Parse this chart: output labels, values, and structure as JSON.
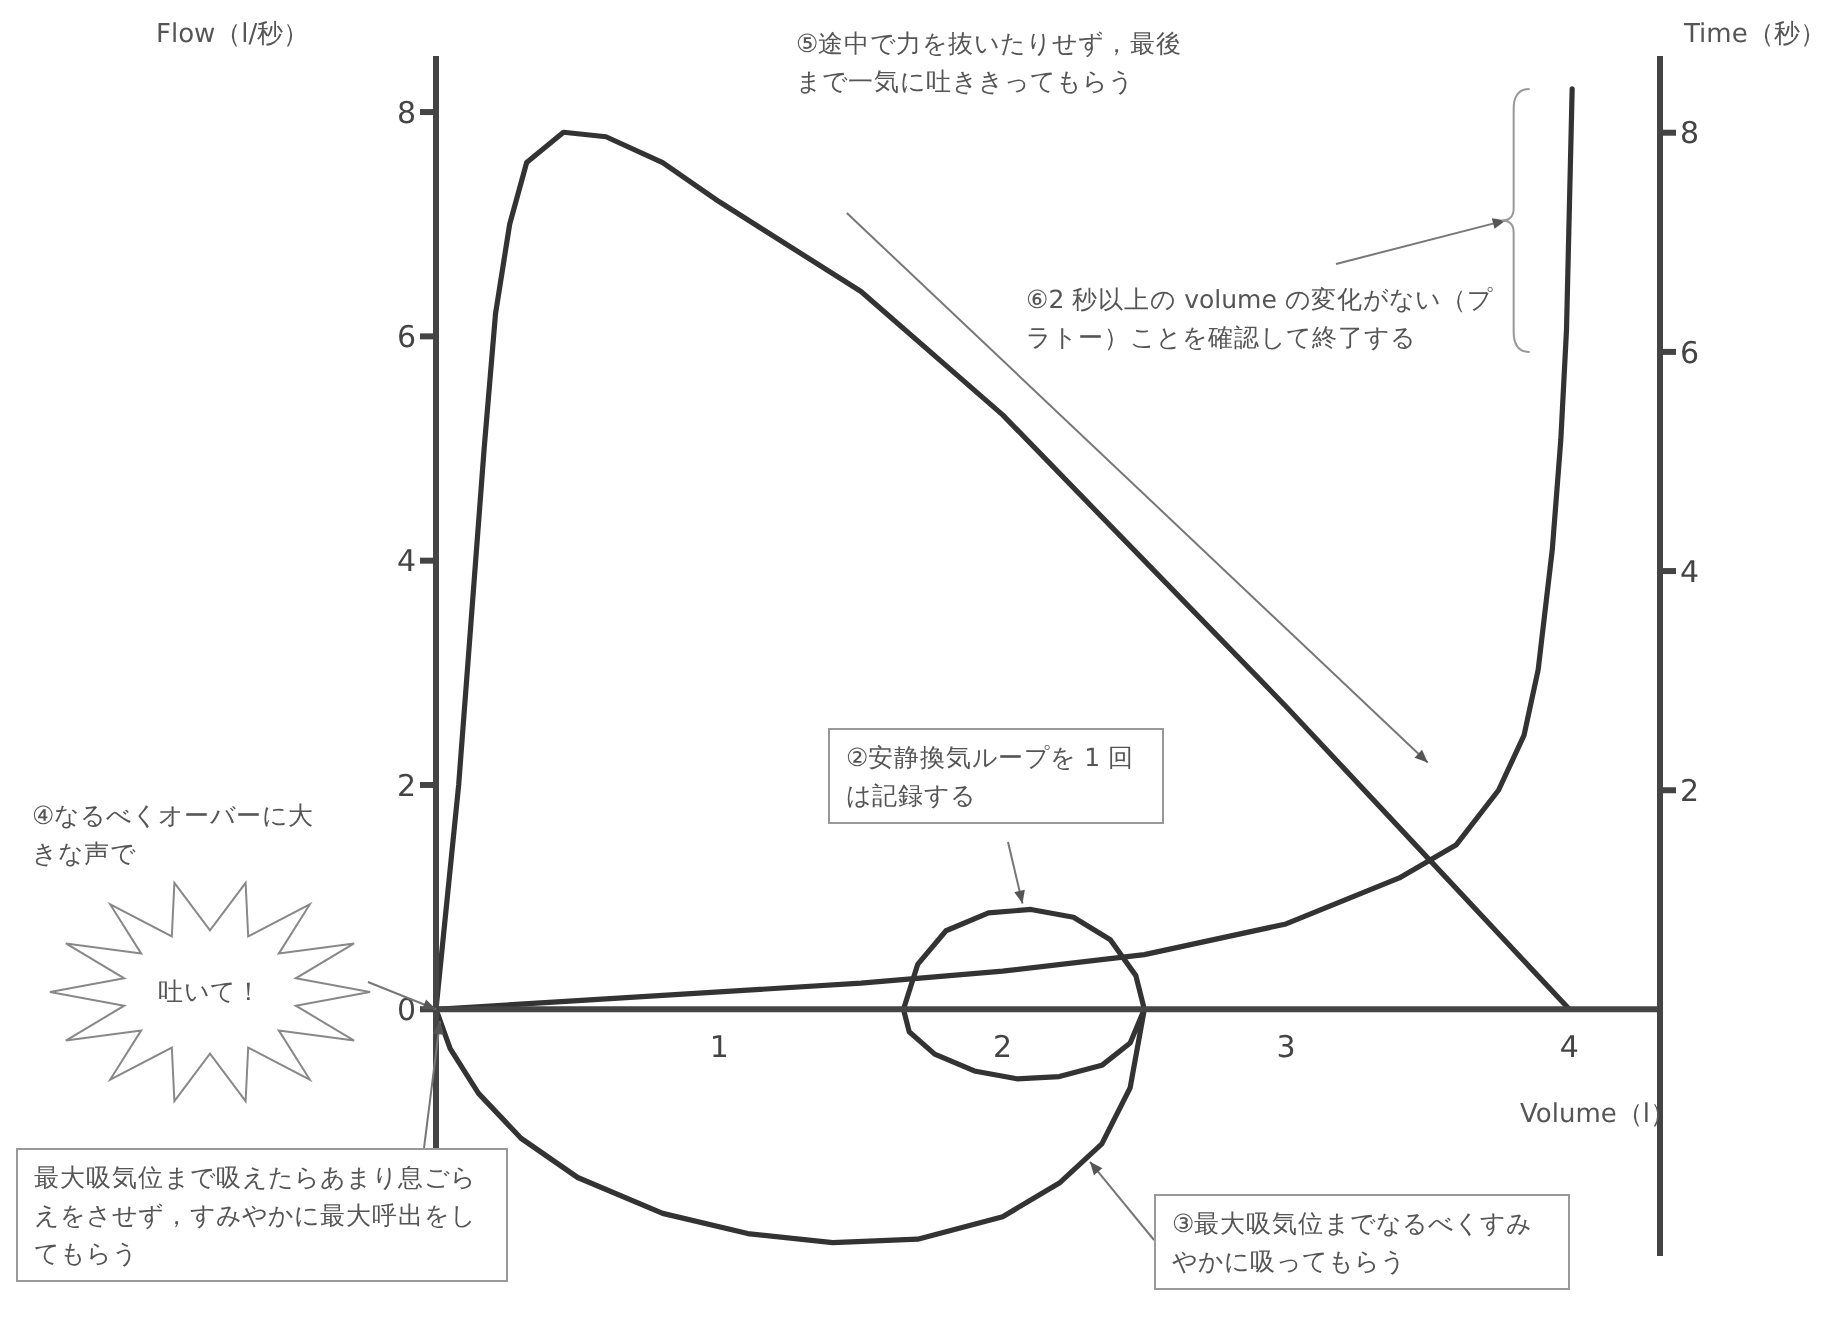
{
  "chart_data": {
    "type": "line",
    "xlabel": "Volume（l）",
    "ylabel": "Flow（l/秒）",
    "y2label": "Time（秒）",
    "xlim": [
      0,
      4.32
    ],
    "xticks": [
      1,
      2,
      3,
      4
    ],
    "ylim": [
      -2.2,
      8.5
    ],
    "yticks": [
      0,
      2,
      4,
      6,
      8
    ],
    "y2lim": [
      -2.25,
      8.7
    ],
    "y2ticks": [
      2,
      4,
      6,
      8
    ],
    "series": [
      {
        "color": "#333333",
        "x": [
          2.5,
          2.47,
          2.38,
          2.25,
          2.1,
          1.95,
          1.8,
          1.7,
          1.65,
          1.67,
          1.76,
          1.9,
          2.05,
          2.2,
          2.35,
          2.45,
          2.5,
          2.45,
          2.35,
          2.2,
          2.0,
          1.7,
          1.4,
          1.1,
          0.8,
          0.5,
          0.3,
          0.15,
          0.05,
          0,
          0.04,
          0.08,
          0.11,
          0.14,
          0.17,
          0.21,
          0.26,
          0.32,
          0.45,
          0.6,
          0.8,
          1.0,
          1.5,
          2.0,
          2.5,
          3.0,
          3.5,
          4.0
        ],
        "values": [
          0,
          0.3,
          0.62,
          0.82,
          0.89,
          0.86,
          0.7,
          0.4,
          0,
          -0.2,
          -0.4,
          -0.55,
          -0.62,
          -0.6,
          -0.5,
          -0.3,
          0,
          -0.7,
          -1.2,
          -1.55,
          -1.85,
          -2.05,
          -2.08,
          -2.0,
          -1.82,
          -1.5,
          -1.15,
          -0.75,
          -0.35,
          0,
          1,
          2,
          3,
          4,
          5,
          6.2,
          7,
          7.55,
          7.82,
          7.78,
          7.55,
          7.2,
          6.4,
          5.3,
          4.0,
          2.7,
          1.35,
          0
        ]
      },
      {
        "color": "#333333",
        "axis": "y2",
        "x": [
          0,
          0.5,
          1.0,
          1.5,
          2.0,
          2.5,
          3.0,
          3.4,
          3.6,
          3.75,
          3.84,
          3.89,
          3.94,
          3.97,
          3.99,
          4.0,
          4.01
        ],
        "values": [
          0,
          0.08,
          0.16,
          0.24,
          0.35,
          0.5,
          0.78,
          1.2,
          1.5,
          2.0,
          2.5,
          3.1,
          4.2,
          5.2,
          6.2,
          7.3,
          8.4
        ]
      }
    ],
    "annotations": [
      "⑤途中で力を抜いたりせず，最後まで一気に吐ききってもらう",
      "⑥2 秒以上の volume の変化がない（プラトー）ことを確認して終了する",
      {
        "text": "②安静換気ループを 1 回は記録する",
        "x": 2.07,
        "y": 0.89
      },
      "④なるべくオーバーに大きな声で",
      "吐いて！",
      {
        "text": "最大吸気位まで吸えたらあまり息ごらえをさせず，すみやかに最大呼出をしてもらう",
        "x": 0,
        "y": 0
      },
      {
        "text": "③最大吸気位までなるべくすみやかに吸ってもらう",
        "x": 2.28,
        "y": -1.36
      }
    ]
  }
}
